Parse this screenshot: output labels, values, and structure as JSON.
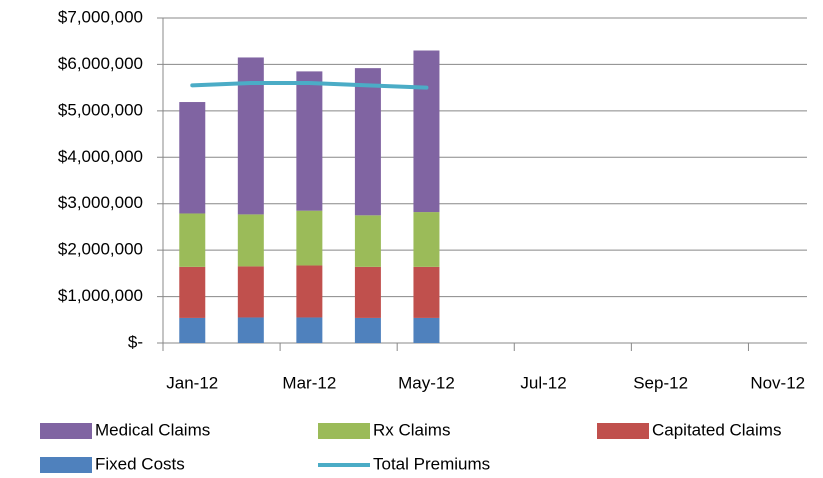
{
  "chart_data": {
    "type": "bar",
    "stacked": true,
    "categories": [
      "Jan-12",
      null,
      "Mar-12",
      null,
      "May-12",
      null,
      "Jul-12",
      null,
      "Sep-12",
      null,
      "Nov-12"
    ],
    "series": [
      {
        "name": "Medical Claims",
        "type": "bar",
        "color": "#8064a2",
        "values": [
          2400000,
          3380000,
          3000000,
          3170000,
          3480000,
          null,
          null,
          null,
          null,
          null,
          null
        ]
      },
      {
        "name": "Rx Claims",
        "type": "bar",
        "color": "#9bbb59",
        "values": [
          1150000,
          1120000,
          1180000,
          1110000,
          1180000,
          null,
          null,
          null,
          null,
          null,
          null
        ]
      },
      {
        "name": "Capitated Claims",
        "type": "bar",
        "color": "#c0504d",
        "values": [
          1100000,
          1100000,
          1120000,
          1100000,
          1100000,
          null,
          null,
          null,
          null,
          null,
          null
        ]
      },
      {
        "name": "Fixed Costs",
        "type": "bar",
        "color": "#4f81bd",
        "values": [
          540000,
          550000,
          550000,
          540000,
          540000,
          null,
          null,
          null,
          null,
          null,
          null
        ]
      },
      {
        "name": "Total Premiums",
        "type": "line",
        "color": "#4bacc6",
        "values": [
          5550000,
          5600000,
          5600000,
          5550000,
          5500000,
          null,
          null,
          null,
          null,
          null,
          null
        ]
      }
    ],
    "ylim": [
      0,
      7000000
    ],
    "yticks": [
      {
        "value": 0,
        "label": "$-"
      },
      {
        "value": 1000000,
        "label": "$1,000,000"
      },
      {
        "value": 2000000,
        "label": "$2,000,000"
      },
      {
        "value": 3000000,
        "label": "$3,000,000"
      },
      {
        "value": 4000000,
        "label": "$4,000,000"
      },
      {
        "value": 5000000,
        "label": "$5,000,000"
      },
      {
        "value": 6000000,
        "label": "$6,000,000"
      },
      {
        "value": 7000000,
        "label": "$7,000,000"
      }
    ],
    "grid": true
  }
}
